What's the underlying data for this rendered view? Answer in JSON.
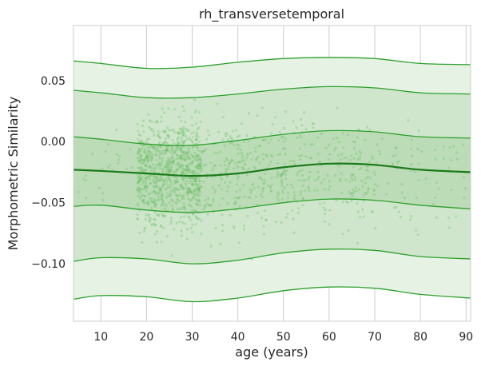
{
  "chart_data": {
    "type": "line",
    "title": "rh_transversetemporal",
    "xlabel": "age (years)",
    "ylabel": "Morphometric Similarity",
    "xlim": [
      4,
      91
    ],
    "ylim": [
      -0.147,
      0.095
    ],
    "xticks": [
      10,
      20,
      30,
      40,
      50,
      60,
      70,
      80,
      90
    ],
    "xtick_labels": [
      "10",
      "20",
      "30",
      "40",
      "50",
      "60",
      "70",
      "80",
      "90"
    ],
    "yticks": [
      0.05,
      0.0,
      -0.05,
      -0.1
    ],
    "ytick_labels": [
      "0.05",
      "0.00",
      "−0.05",
      "−0.10"
    ],
    "grid": true,
    "x": [
      4,
      10,
      20,
      30,
      40,
      50,
      60,
      70,
      80,
      91
    ],
    "series": [
      {
        "role": "upper-outer",
        "values": [
          0.066,
          0.064,
          0.06,
          0.061,
          0.065,
          0.068,
          0.069,
          0.068,
          0.064,
          0.063
        ]
      },
      {
        "role": "upper-inner",
        "values": [
          0.042,
          0.04,
          0.036,
          0.036,
          0.039,
          0.043,
          0.045,
          0.044,
          0.04,
          0.039
        ]
      },
      {
        "role": "upper-mid",
        "values": [
          0.004,
          0.002,
          -0.002,
          -0.003,
          0.001,
          0.006,
          0.009,
          0.008,
          0.004,
          0.003
        ]
      },
      {
        "role": "median",
        "values": [
          -0.023,
          -0.024,
          -0.026,
          -0.028,
          -0.026,
          -0.021,
          -0.018,
          -0.019,
          -0.023,
          -0.025
        ]
      },
      {
        "role": "lower-mid",
        "values": [
          -0.053,
          -0.052,
          -0.056,
          -0.058,
          -0.055,
          -0.05,
          -0.047,
          -0.048,
          -0.052,
          -0.055
        ]
      },
      {
        "role": "lower-inner",
        "values": [
          -0.098,
          -0.095,
          -0.096,
          -0.1,
          -0.097,
          -0.091,
          -0.088,
          -0.089,
          -0.094,
          -0.096
        ]
      },
      {
        "role": "lower-outer",
        "values": [
          -0.129,
          -0.126,
          -0.127,
          -0.131,
          -0.128,
          -0.122,
          -0.119,
          -0.12,
          -0.125,
          -0.128
        ]
      }
    ],
    "scatter_density": {
      "age_bins": [
        [
          5,
          18,
          25
        ],
        [
          18,
          32,
          900
        ],
        [
          32,
          50,
          260
        ],
        [
          50,
          70,
          220
        ],
        [
          70,
          90,
          70
        ]
      ],
      "y_center": -0.025,
      "y_spread": 0.035
    },
    "colors": {
      "line": "#2ca02c",
      "median": "#1a7a1a",
      "outer_band": "#e6f2e4",
      "inner_band": "#cfe6cc",
      "center_band": "#bcdcb7",
      "points": "#6fbf6a",
      "grid": "#cccccc",
      "axes_bg": "#ffffff"
    }
  }
}
